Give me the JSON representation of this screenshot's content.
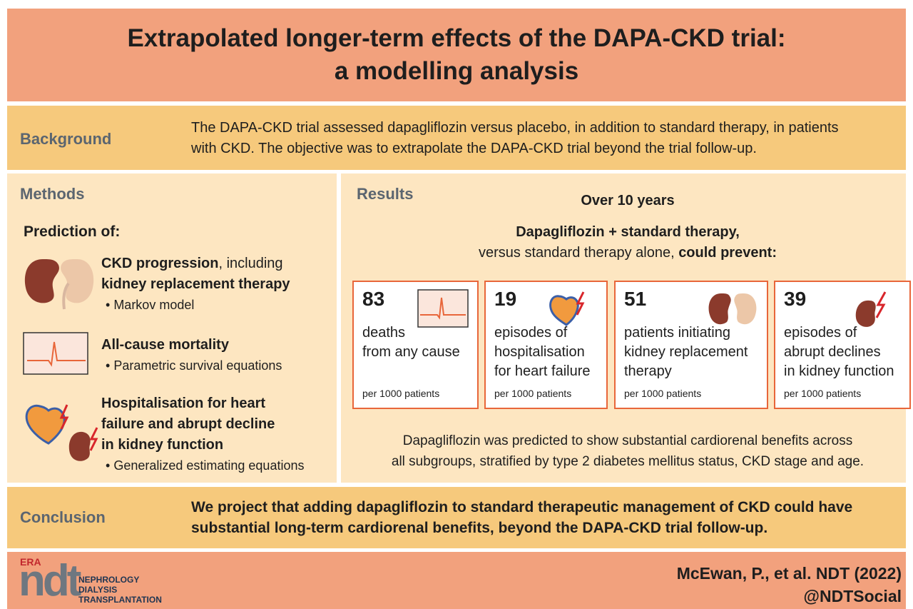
{
  "header": {
    "title_lines": [
      "Extrapolated longer-term effects of the DAPA-CKD trial:",
      "a modelling analysis"
    ]
  },
  "background": {
    "heading": "Background",
    "text_lines": [
      "The DAPA-CKD trial assessed dapagliflozin versus placebo, in addition to standard therapy, in patients",
      "with CKD. The objective was to extrapolate the DAPA-CKD trial beyond the trial follow-up."
    ]
  },
  "methods": {
    "heading": "Methods",
    "subheading": "Prediction of:",
    "items": [
      {
        "title_bold": "CKD progression",
        "title_rest": ", including",
        "title_bold_2": "kidney replacement therapy",
        "bullet": "Markov model"
      },
      {
        "title_bold": "All-cause mortality",
        "bullet": "Parametric survival equations"
      },
      {
        "title_bold_lines": [
          "Hospitalisation for heart",
          "failure and abrupt decline",
          "in kidney function"
        ],
        "bullet": "Generalized estimating equations"
      }
    ]
  },
  "results": {
    "heading": "Results",
    "period": "Over 10 years",
    "intro_bold": "Dapagliflozin + standard therapy,",
    "intro_rest": "versus standard therapy alone,",
    "intro_bold_2": "could prevent:",
    "cards": [
      {
        "value": 83,
        "label_lines": [
          "deaths",
          "from any cause"
        ],
        "unit": "per 1000 patients"
      },
      {
        "value": 19,
        "label_lines": [
          "episodes of",
          "hospitalisation",
          "for heart failure"
        ],
        "unit": "per 1000 patients"
      },
      {
        "value": 51,
        "label_lines": [
          "patients initiating",
          "kidney replacement",
          "therapy"
        ],
        "unit": "per 1000 patients"
      },
      {
        "value": 39,
        "label_lines": [
          "episodes of",
          "abrupt declines",
          "in kidney function"
        ],
        "unit": "per 1000 patients"
      }
    ],
    "note_lines": [
      "Dapagliflozin was predicted to show substantial cardiorenal benefits across",
      "all subgroups, stratified by type 2 diabetes mellitus status, CKD stage and age."
    ]
  },
  "conclusion": {
    "heading": "Conclusion",
    "text_lines": [
      "We project that adding dapagliflozin to standard therapeutic management of CKD could have",
      "substantial long-term cardiorenal benefits, beyond the DAPA-CKD trial follow-up."
    ]
  },
  "footer": {
    "logo_era": "ERA",
    "logo_ndt": "ndt",
    "journal_lines": [
      "NEPHROLOGY",
      "DIALYSIS",
      "TRANSPLANTATION"
    ],
    "citation": "McEwan, P., et al. NDT (2022)",
    "handle": "@NDTSocial"
  }
}
